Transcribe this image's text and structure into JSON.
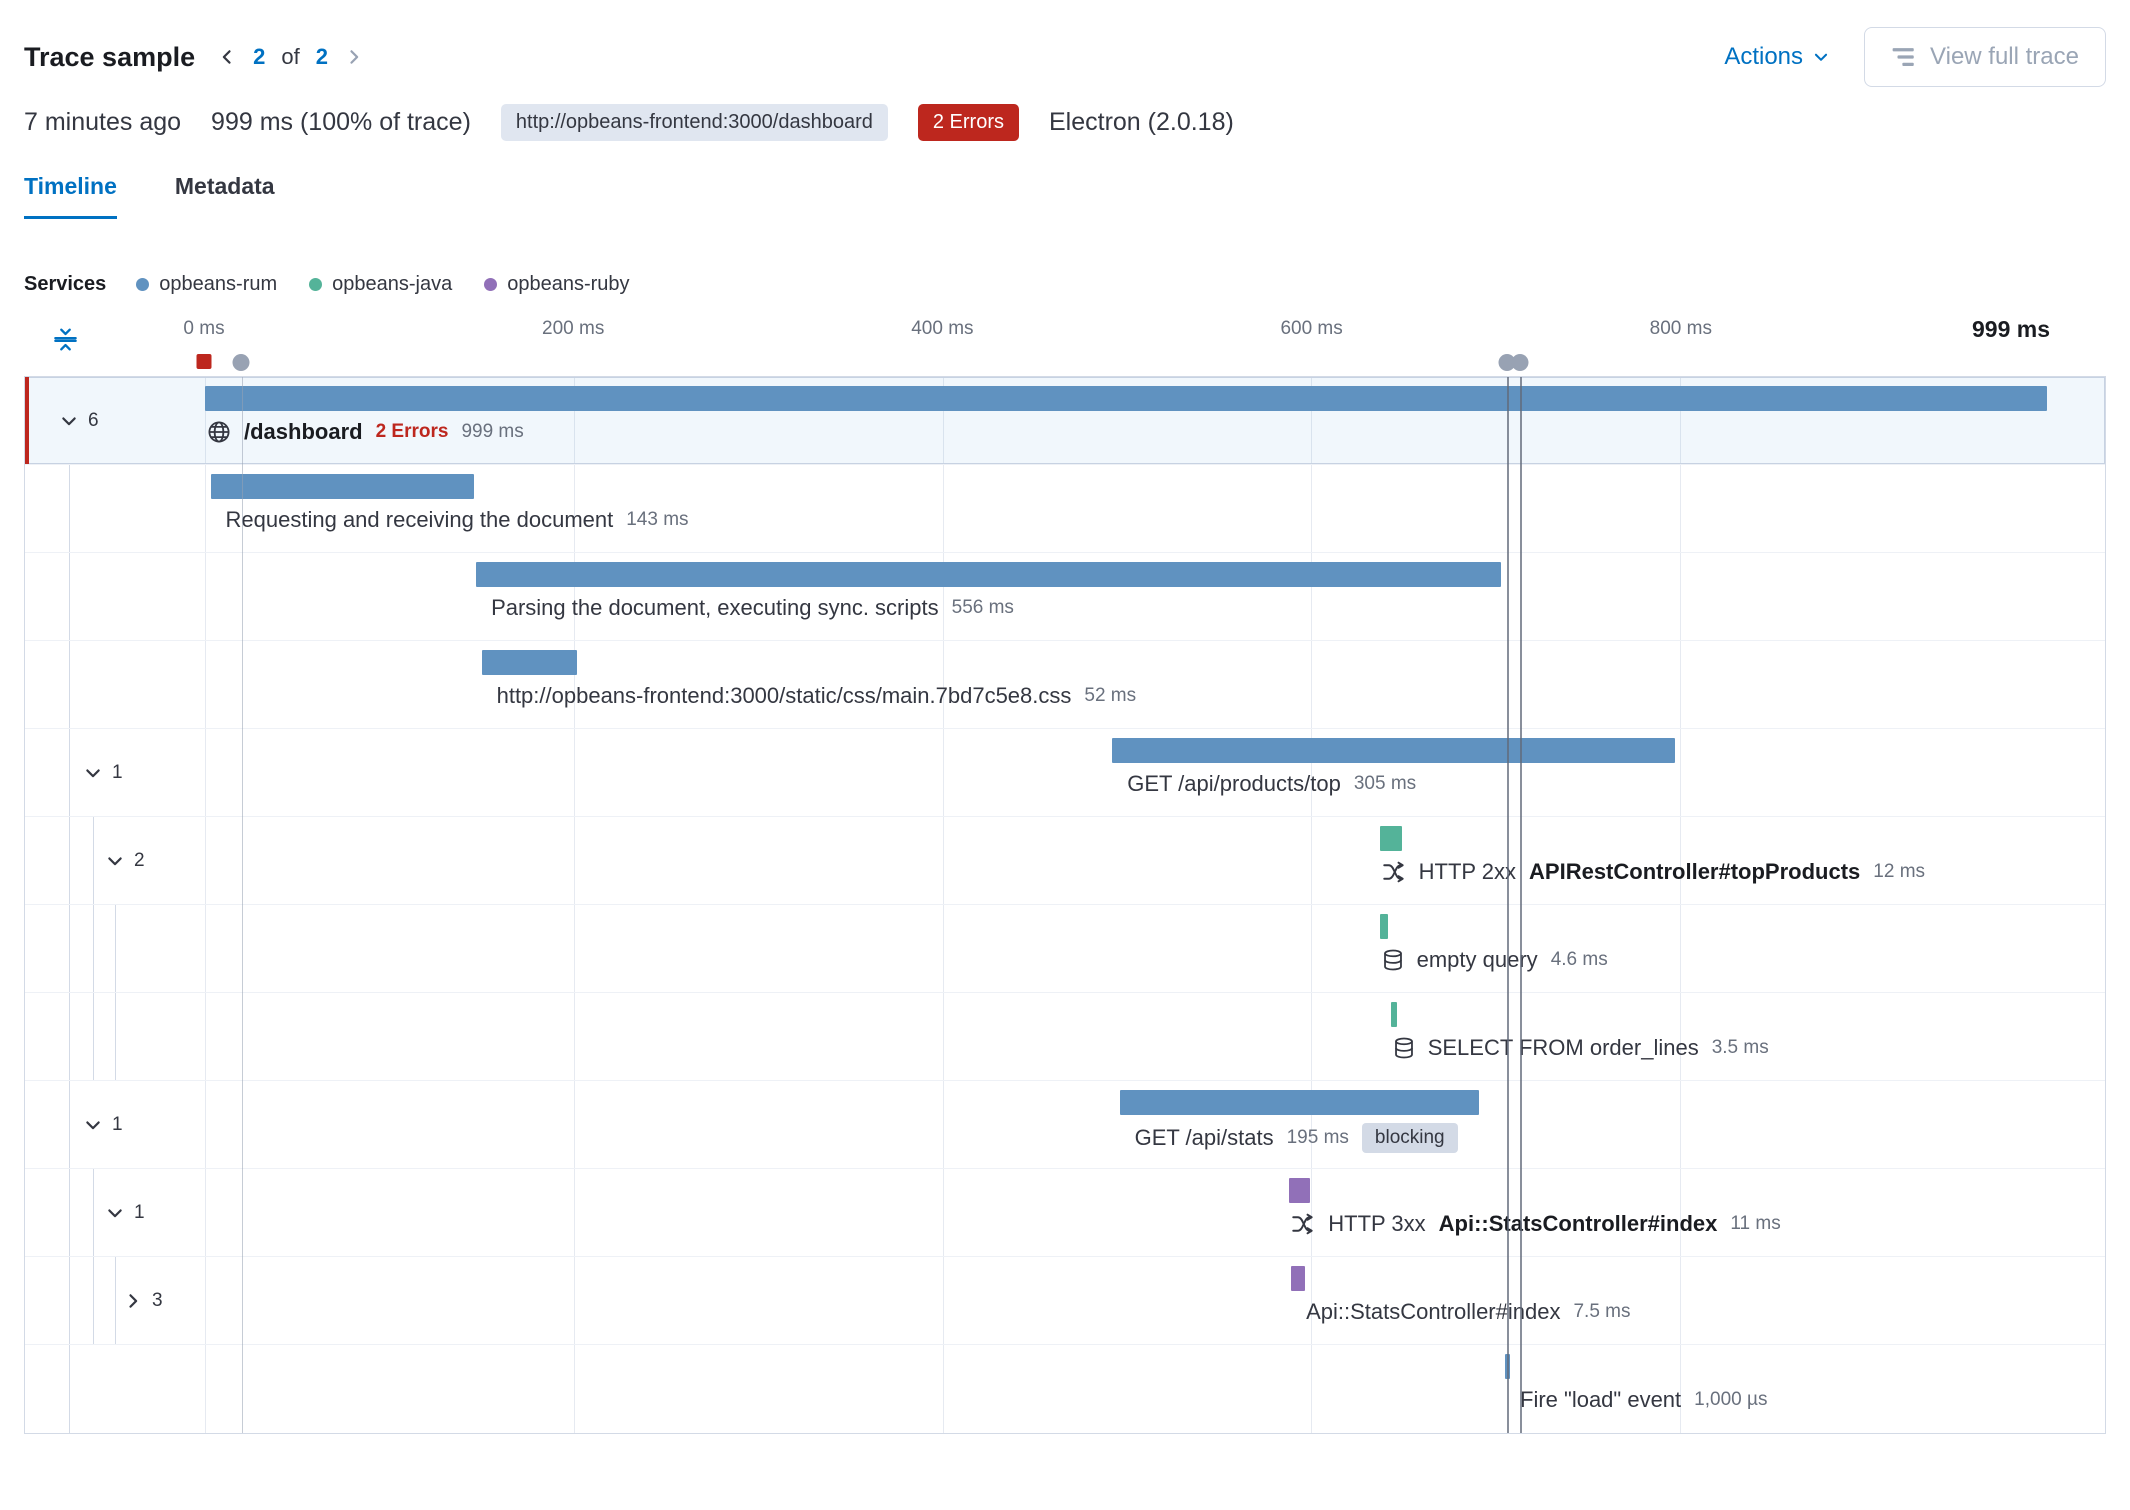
{
  "header": {
    "title": "Trace sample",
    "pagination": {
      "current": "2",
      "of": "of",
      "total": "2"
    },
    "actions": "Actions",
    "view_full_trace": "View full trace"
  },
  "summary": {
    "time_ago": "7 minutes ago",
    "duration": "999 ms",
    "duration_pct": "(100% of trace)",
    "url": "http://opbeans-frontend:3000/dashboard",
    "errors": "2 Errors",
    "agent": "Electron",
    "agent_version": "(2.0.18)"
  },
  "tabs": [
    {
      "label": "Timeline",
      "active": true
    },
    {
      "label": "Metadata",
      "active": false
    }
  ],
  "legend": {
    "title": "Services",
    "items": [
      {
        "label": "opbeans-rum",
        "color": "#6092c0"
      },
      {
        "label": "opbeans-java",
        "color": "#54b399"
      },
      {
        "label": "opbeans-ruby",
        "color": "#9170b8"
      }
    ]
  },
  "axis": {
    "total_ms": 1000,
    "ticks": [
      {
        "ms": 0,
        "label": "0 ms"
      },
      {
        "ms": 200,
        "label": "200 ms"
      },
      {
        "ms": 400,
        "label": "400 ms"
      },
      {
        "ms": 600,
        "label": "600 ms"
      },
      {
        "ms": 800,
        "label": "800 ms"
      }
    ],
    "end_label": "999 ms",
    "marks": [
      {
        "ms": 0,
        "shape": "square",
        "color": "#bd271e",
        "line": "none",
        "name": "error-mark"
      },
      {
        "ms": 20,
        "shape": "dot",
        "color": "#98a2b3",
        "line": "light",
        "name": "agent-mark"
      },
      {
        "ms": 706,
        "shape": "dot",
        "color": "#98a2b3",
        "line": "dark",
        "name": "agent-mark"
      },
      {
        "ms": 713,
        "shape": "dot",
        "color": "#98a2b3",
        "line": "dark",
        "name": "agent-mark"
      }
    ]
  },
  "waterfall": {
    "rows": [
      {
        "id": "dashboard",
        "depth": 0,
        "toggle": {
          "state": "open",
          "count": "6"
        },
        "selected": true,
        "bar": {
          "start": 0,
          "duration": 999,
          "color": "#6092c0"
        },
        "icon": "globe",
        "title": "/dashboard",
        "bold": true,
        "error": "2 Errors",
        "duration_label": "999 ms"
      },
      {
        "id": "request-document",
        "depth": 1,
        "bar": {
          "start": 3,
          "duration": 143,
          "color": "#6092c0"
        },
        "title": "Requesting and receiving the document",
        "duration_label": "143 ms"
      },
      {
        "id": "parsing-document",
        "depth": 1,
        "bar": {
          "start": 147,
          "duration": 556,
          "color": "#6092c0"
        },
        "title": "Parsing the document, executing sync. scripts",
        "duration_label": "556 ms"
      },
      {
        "id": "css-resource",
        "depth": 1,
        "bar": {
          "start": 150,
          "duration": 52,
          "color": "#6092c0"
        },
        "title": "http://opbeans-frontend:3000/static/css/main.7bd7c5e8.css",
        "duration_label": "52 ms"
      },
      {
        "id": "get-api-products-top",
        "depth": 1,
        "toggle": {
          "state": "open",
          "count": "1"
        },
        "bar": {
          "start": 492,
          "duration": 305,
          "color": "#6092c0"
        },
        "title": "GET /api/products/top",
        "duration_label": "305 ms"
      },
      {
        "id": "top-products-transaction",
        "depth": 2,
        "toggle": {
          "state": "open",
          "count": "2"
        },
        "bar": {
          "start": 637,
          "duration": 12,
          "color": "#54b399"
        },
        "icon": "transaction",
        "prefix": "HTTP 2xx",
        "title": "APIRestController#topProducts",
        "bold": true,
        "duration_label": "12 ms"
      },
      {
        "id": "empty-query",
        "depth": 3,
        "bar": {
          "start": 637,
          "duration": 4.6,
          "color": "#54b399"
        },
        "icon": "database",
        "title": "empty query",
        "duration_label": "4.6 ms"
      },
      {
        "id": "select-from-order-lines",
        "depth": 3,
        "bar": {
          "start": 643,
          "duration": 3.5,
          "color": "#54b399"
        },
        "icon": "database",
        "title": "SELECT FROM order_lines",
        "duration_label": "3.5 ms"
      },
      {
        "id": "get-api-stats",
        "depth": 1,
        "toggle": {
          "state": "open",
          "count": "1"
        },
        "bar": {
          "start": 496,
          "duration": 195,
          "color": "#6092c0"
        },
        "title": "GET /api/stats",
        "duration_label": "195 ms",
        "badge": "blocking"
      },
      {
        "id": "stats-transaction",
        "depth": 2,
        "toggle": {
          "state": "open",
          "count": "1"
        },
        "bar": {
          "start": 588,
          "duration": 11,
          "color": "#9170b8"
        },
        "icon": "transaction",
        "prefix": "HTTP 3xx",
        "title": "Api::StatsController#index",
        "bold": true,
        "duration_label": "11 ms"
      },
      {
        "id": "stats-span-group",
        "depth": 3,
        "toggle": {
          "state": "closed",
          "count": "3"
        },
        "bar": {
          "start": 589,
          "duration": 7.5,
          "color": "#9170b8"
        },
        "title": "Api::StatsController#index",
        "duration_label": "7.5 ms"
      },
      {
        "id": "fire-load-event",
        "depth": 1,
        "bar": {
          "start": 705,
          "duration": 1,
          "color": "#6092c0"
        },
        "title": "Fire \"load\" event",
        "duration_label": "1,000 µs"
      }
    ]
  }
}
